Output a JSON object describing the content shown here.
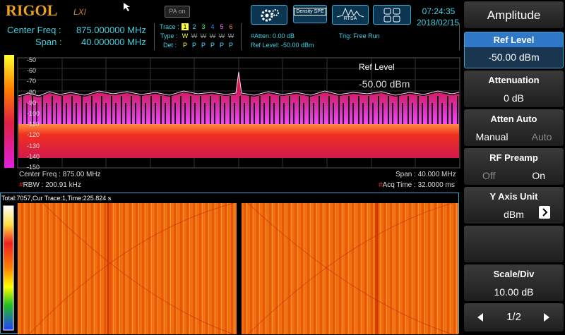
{
  "header": {
    "logo": "RIGOL",
    "lxi": "LXI",
    "pa": "PA on",
    "density_button": "Density SPE",
    "rtsa_button": "RTSA",
    "time": "07:24:35",
    "date": "2018/02/15"
  },
  "params": {
    "center_freq_label": "Center Freq :",
    "center_freq_value": "875.000000 MHz",
    "span_label": "Span :",
    "span_value": "40.000000 MHz"
  },
  "trace": {
    "label": "Trace :",
    "type_label": "Type :",
    "det_label": "Det :",
    "numbers": [
      "1",
      "2",
      "3",
      "4",
      "5",
      "6"
    ],
    "types": [
      "W",
      "W",
      "W",
      "W",
      "W",
      "W"
    ],
    "dets": [
      "P",
      "P",
      "P",
      "P",
      "P",
      "P"
    ]
  },
  "status": {
    "atten": "#Atten: 0.00 dB",
    "ref_level": "Ref Level: -50.00 dBm",
    "trigger": "Trig: Free Run"
  },
  "spectrum": {
    "y_labels": [
      "-50",
      "-60",
      "-70",
      "-80",
      "-90",
      "-100",
      "-110",
      "-120",
      "-130",
      "-140",
      "-150"
    ],
    "marker_label": "Ref Level",
    "marker_value": "-50.00 dBm",
    "center_freq": "Center Freq : 875.00 MHz",
    "span": "Span : 40.000 MHz",
    "rbw_flag": "#",
    "rbw": "RBW : 200.91 kHz",
    "acq_flag": "#",
    "acq_time": "Acq Time : 32.0000 ms"
  },
  "waterfall": {
    "status": "Total:7057,Cur Trace:1,Time:225.824 s"
  },
  "menu": {
    "title": "Amplitude",
    "items": [
      {
        "label": "Ref Level",
        "value": "-50.00 dBm"
      },
      {
        "label": "Attenuation",
        "value": "0 dB"
      },
      {
        "label": "Atten Auto",
        "options": [
          "Manual",
          "Auto"
        ]
      },
      {
        "label": "RF Preamp",
        "options": [
          "Off",
          "On"
        ]
      },
      {
        "label": "Y Axis Unit",
        "value": "dBm"
      },
      {
        "label": "Scale/Div",
        "value": "10.00 dB"
      }
    ],
    "page": "1/2"
  }
}
